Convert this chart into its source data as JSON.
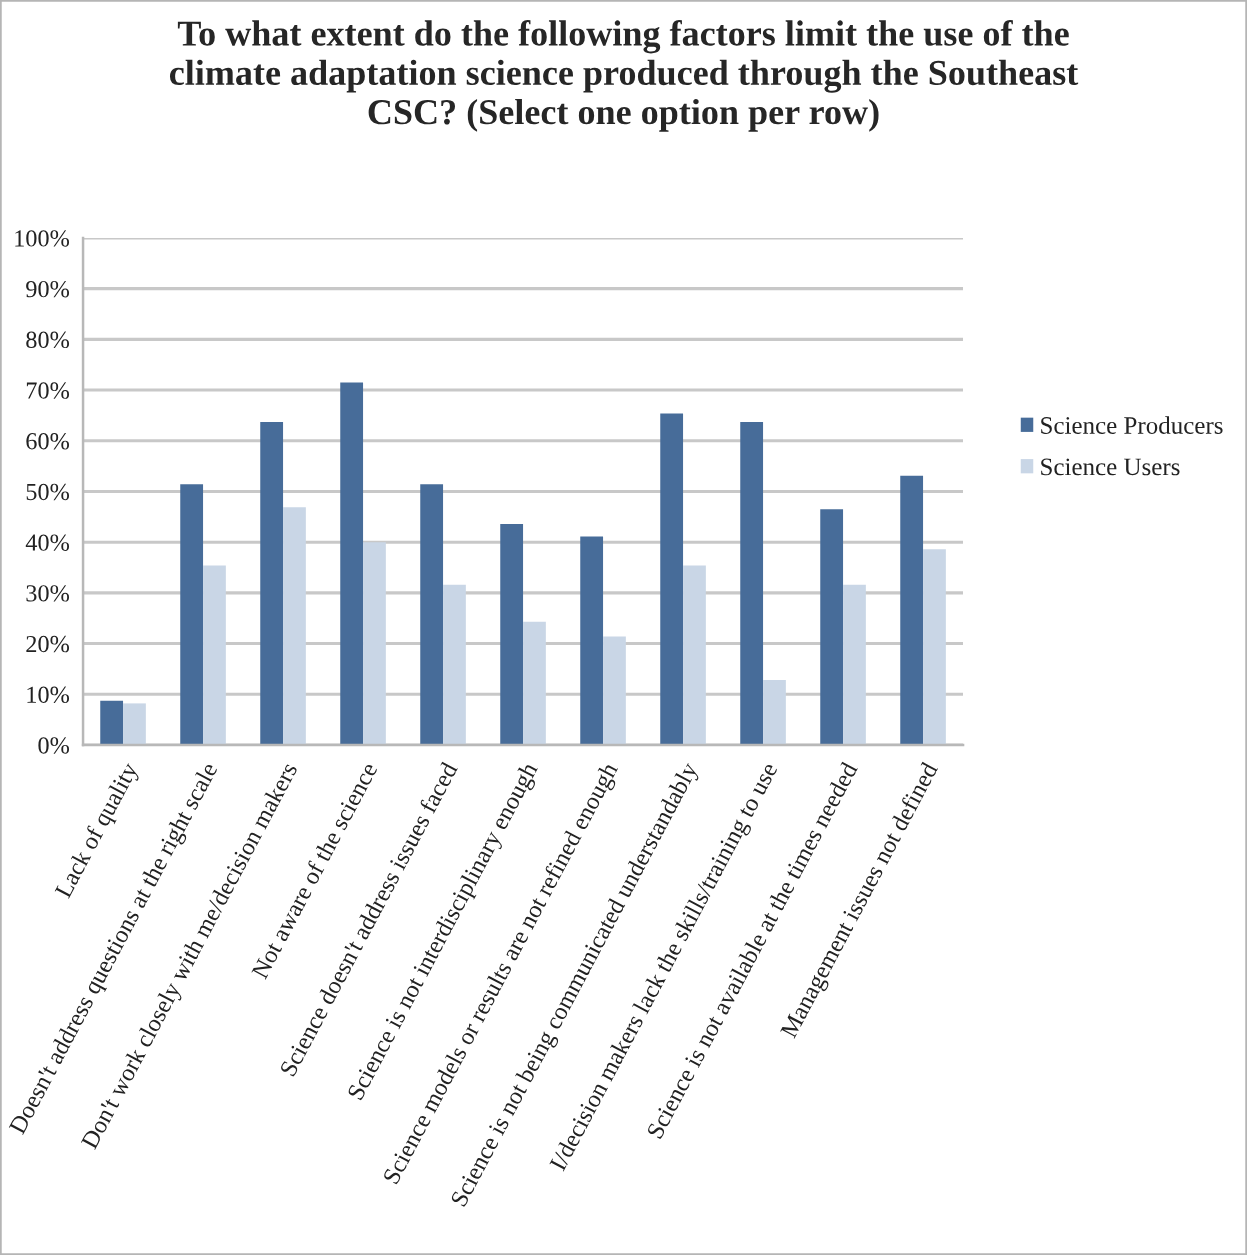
{
  "chart_data": {
    "type": "bar",
    "title": "To what extent do the following factors limit the use of the climate adaptation science produced through the Southeast CSC? (Select one option per row)",
    "categories": [
      "Lack of quality",
      "Doesn't address questions at the right scale",
      "Don't work closely with me/decision makers",
      "Not aware of the science",
      "Science doesn't address issues faced",
      "Science is not interdisciplinary enough",
      "Science models or results are not refined enough",
      "Science is not being communicated understandably",
      "I/decision makers lack the skills/training to use",
      "Science is not available at the times needed",
      "Management issues not defined"
    ],
    "series": [
      {
        "name": "Science Producers",
        "color": "#476c99",
        "values": [
          8.7,
          51.4,
          63.7,
          71.5,
          51.4,
          43.6,
          41.1,
          65.4,
          63.7,
          46.5,
          53.1
        ]
      },
      {
        "name": "Science Users",
        "color": "#c9d6e6",
        "values": [
          8.2,
          35.4,
          46.9,
          40.0,
          31.6,
          24.3,
          21.4,
          35.4,
          12.8,
          31.6,
          38.6
        ]
      }
    ],
    "ylim": [
      0,
      100
    ],
    "yticks": [
      {
        "value": 0,
        "label": "0%"
      },
      {
        "value": 10,
        "label": "10%"
      },
      {
        "value": 20,
        "label": "20%"
      },
      {
        "value": 30,
        "label": "30%"
      },
      {
        "value": 40,
        "label": "40%"
      },
      {
        "value": 50,
        "label": "50%"
      },
      {
        "value": 60,
        "label": "60%"
      },
      {
        "value": 70,
        "label": "70%"
      },
      {
        "value": 80,
        "label": "80%"
      },
      {
        "value": 90,
        "label": "90%"
      },
      {
        "value": 100,
        "label": "100%"
      }
    ],
    "grid": "y",
    "legend": "right"
  }
}
